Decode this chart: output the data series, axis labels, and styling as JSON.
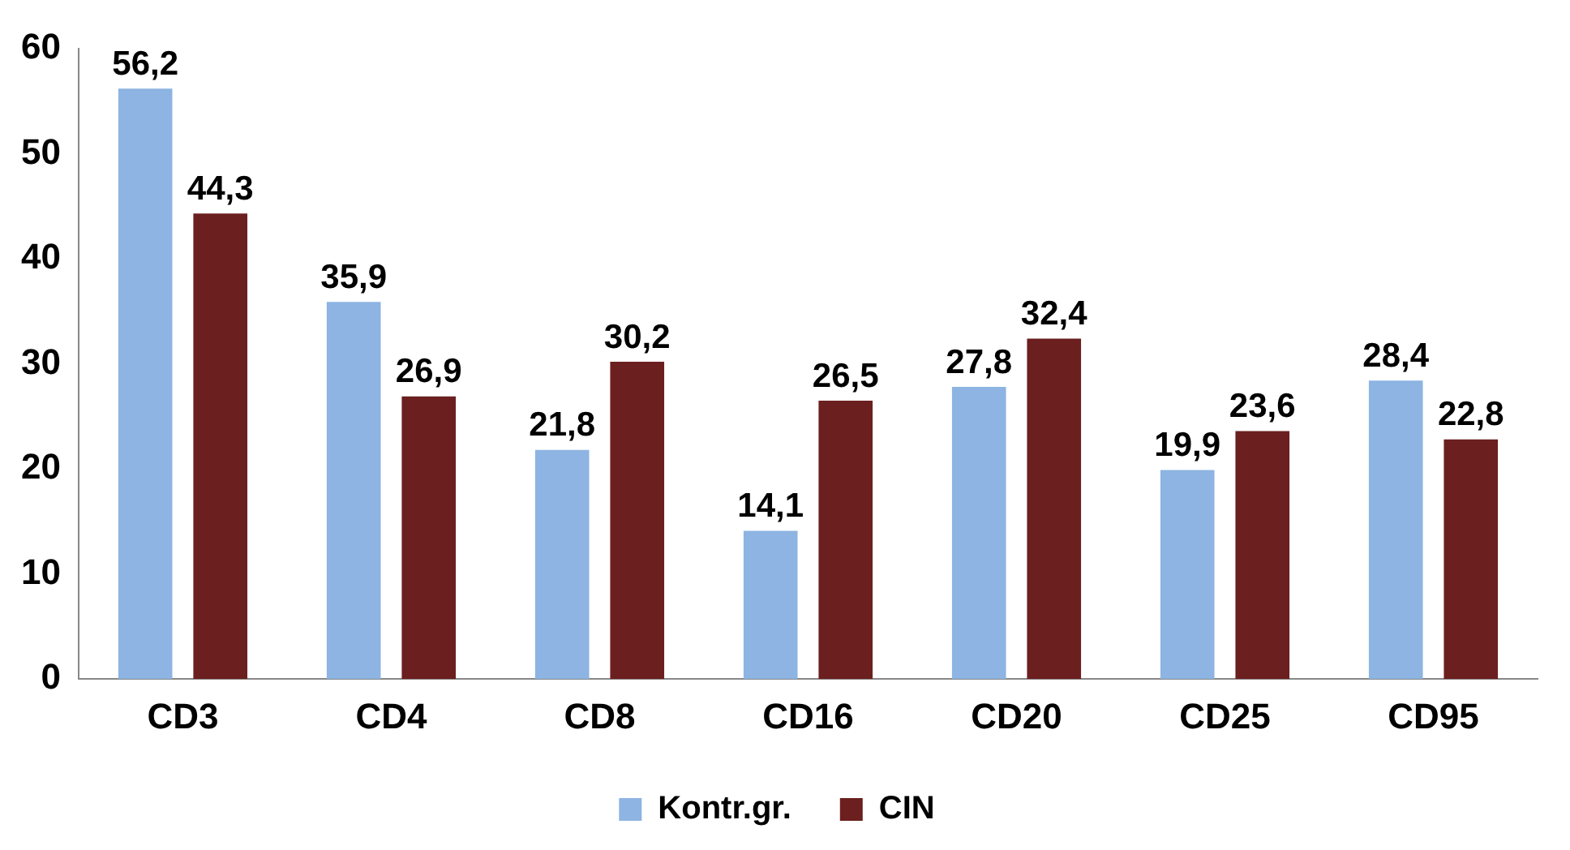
{
  "chart_data": {
    "type": "bar",
    "categories": [
      "CD3",
      "CD4",
      "CD8",
      "CD16",
      "CD20",
      "CD25",
      "CD95"
    ],
    "series": [
      {
        "name": "Kontr.gr.",
        "color": "#8db4e2",
        "values": [
          56.2,
          35.9,
          21.8,
          14.1,
          27.8,
          19.9,
          28.4
        ],
        "value_labels": [
          "56,2",
          "35,9",
          "21,8",
          "14,1",
          "27,8",
          "19,9",
          "28,4"
        ]
      },
      {
        "name": "CIN",
        "color": "#6b1f1f",
        "values": [
          44.3,
          26.9,
          30.2,
          26.5,
          32.4,
          23.6,
          22.8
        ],
        "value_labels": [
          "44,3",
          "26,9",
          "30,2",
          "26,5",
          "32,4",
          "23,6",
          "22,8"
        ]
      }
    ],
    "ylim": [
      0,
      60
    ],
    "yticks": [
      0,
      10,
      20,
      30,
      40,
      50,
      60
    ],
    "grid": false,
    "legend": "bottom"
  }
}
